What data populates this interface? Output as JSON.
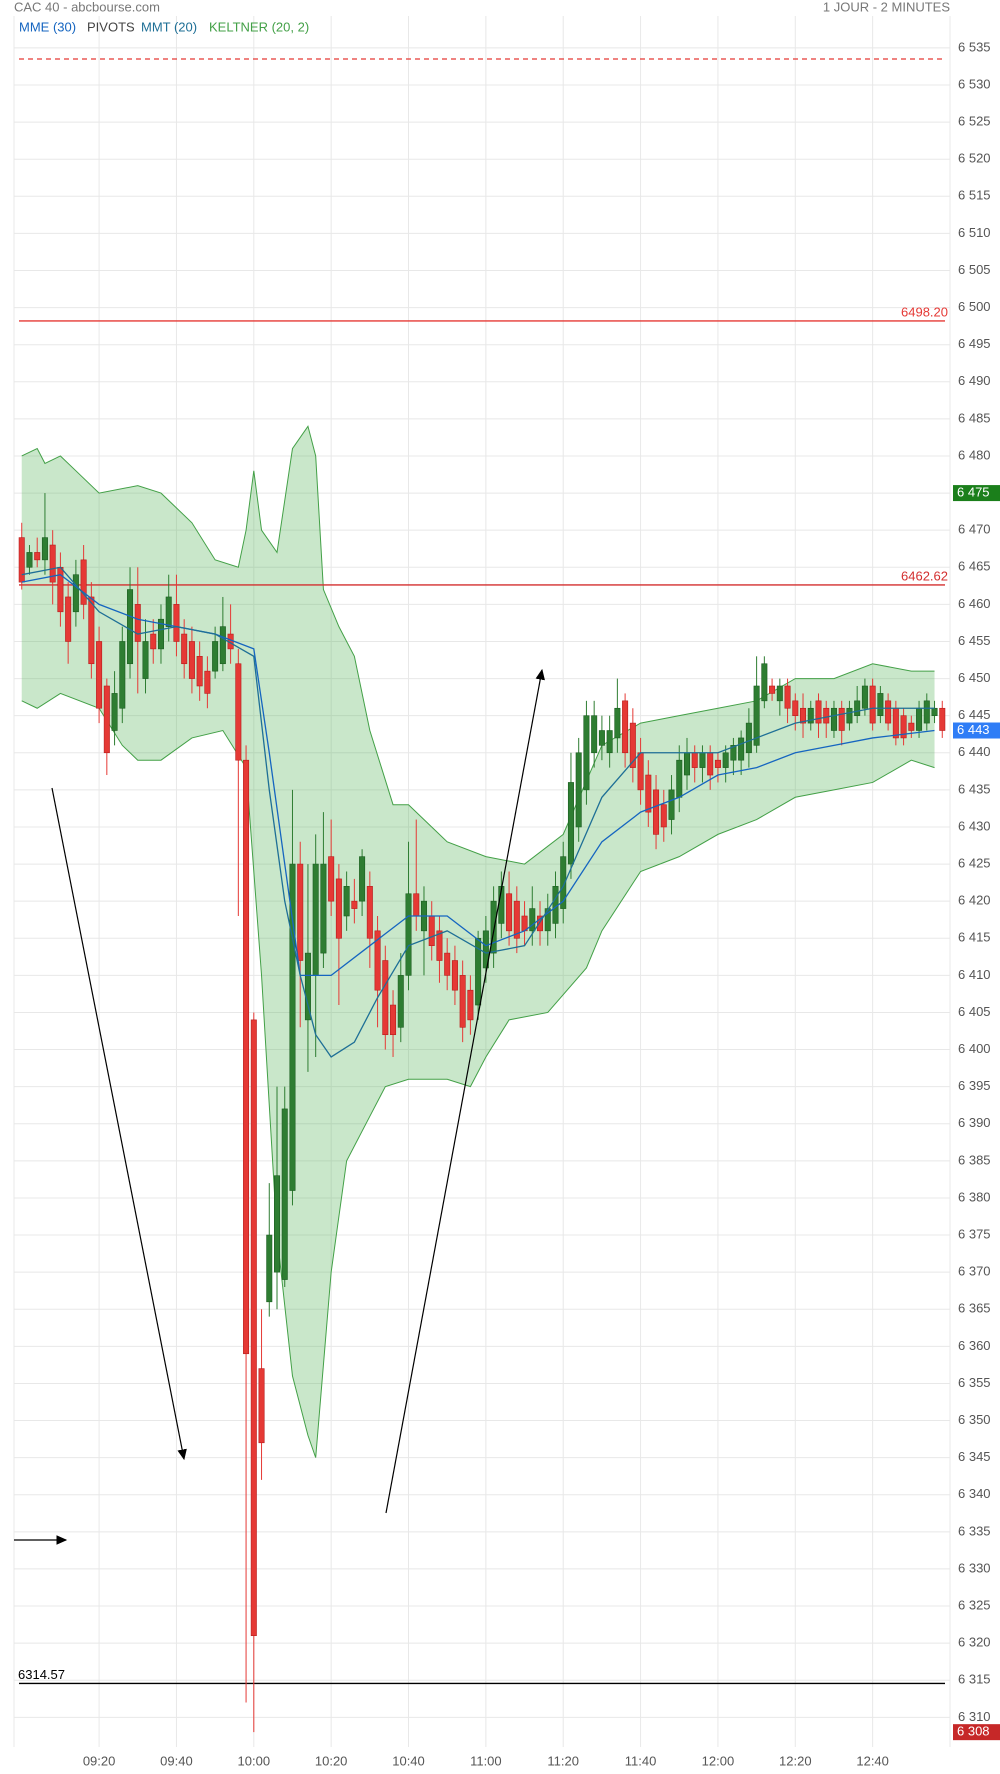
{
  "chart_data": {
    "type": "candlestick",
    "title": "CAC 40 - abcbourse.com",
    "subtitle": "1 JOUR - 2 MINUTES",
    "x": [
      "09:00",
      "09:02",
      "09:04",
      "09:06",
      "09:08",
      "09:10",
      "09:12",
      "09:14",
      "09:16",
      "09:18",
      "09:20",
      "09:22",
      "09:24",
      "09:26",
      "09:28",
      "09:30",
      "09:32",
      "09:34",
      "09:36",
      "09:38",
      "09:40",
      "09:42",
      "09:44",
      "09:46",
      "09:48",
      "09:50",
      "09:52",
      "09:54",
      "09:56",
      "09:58",
      "10:00",
      "10:02",
      "10:04",
      "10:06",
      "10:08",
      "10:10",
      "10:12",
      "10:14",
      "10:16",
      "10:18",
      "10:20",
      "10:22",
      "10:24",
      "10:26",
      "10:28",
      "10:30",
      "10:32",
      "10:34",
      "10:36",
      "10:38",
      "10:40",
      "10:42",
      "10:44",
      "10:46",
      "10:48",
      "10:50",
      "10:52",
      "10:54",
      "10:56",
      "10:58",
      "11:00",
      "11:02",
      "11:04",
      "11:06",
      "11:08",
      "11:10",
      "11:12",
      "11:14",
      "11:16",
      "11:18",
      "11:20",
      "11:22",
      "11:24",
      "11:26",
      "11:28",
      "11:30",
      "11:32",
      "11:34",
      "11:36",
      "11:38",
      "11:40",
      "11:42",
      "11:44",
      "11:46",
      "11:48",
      "11:50",
      "11:52",
      "11:54",
      "11:56",
      "11:58",
      "12:00",
      "12:02",
      "12:04",
      "12:06",
      "12:08",
      "12:10",
      "12:12",
      "12:14",
      "12:16",
      "12:18",
      "12:20",
      "12:22",
      "12:24",
      "12:26",
      "12:28",
      "12:30",
      "12:32",
      "12:34",
      "12:36",
      "12:38",
      "12:40",
      "12:42",
      "12:44",
      "12:46",
      "12:48",
      "12:50",
      "12:52",
      "12:54",
      "12:56",
      "12:58"
    ],
    "open": [
      6469,
      6465,
      6467,
      6466,
      6468,
      6465,
      6461,
      6459,
      6466,
      6461,
      6455,
      6449,
      6443,
      6446,
      6452,
      6460,
      6450,
      6456,
      6454,
      6457,
      6460,
      6456,
      6455,
      6453,
      6451,
      6451,
      6452,
      6456,
      6452,
      6439,
      6404,
      6357,
      6366,
      6370,
      6369,
      6381,
      6425,
      6404,
      6410,
      6413,
      6426,
      6423,
      6418,
      6420,
      6420,
      6422,
      6416,
      6412,
      6406,
      6403,
      6410,
      6421,
      6416,
      6418,
      6416,
      6413,
      6412,
      6410,
      6408,
      6406,
      6411,
      6413,
      6417,
      6421,
      6420,
      6418,
      6416,
      6418,
      6416,
      6417,
      6419,
      6425,
      6430,
      6435,
      6440,
      6441,
      6440,
      6442,
      6447,
      6444,
      6440,
      6437,
      6435,
      6433,
      6431,
      6434,
      6437,
      6440,
      6438,
      6440,
      6439,
      6438,
      6439,
      6439,
      6440,
      6441,
      6447,
      6449,
      6447,
      6449,
      6447,
      6446,
      6444,
      6447,
      6446,
      6443,
      6446,
      6444,
      6445,
      6446,
      6449,
      6445,
      6447,
      6446,
      6445,
      6444,
      6443,
      6444,
      6445,
      6446
    ],
    "high": [
      6471,
      6468,
      6469,
      6475,
      6470,
      6467,
      6463,
      6466,
      6468,
      6463,
      6457,
      6450,
      6451,
      6457,
      6465,
      6465,
      6458,
      6458,
      6460,
      6464,
      6464,
      6458,
      6457,
      6455,
      6453,
      6457,
      6461,
      6460,
      6454,
      6441,
      6405,
      6365,
      6382,
      6395,
      6395,
      6435,
      6428,
      6425,
      6429,
      6432,
      6431,
      6425,
      6424,
      6423,
      6427,
      6424,
      6418,
      6414,
      6408,
      6413,
      6428,
      6431,
      6422,
      6420,
      6418,
      6415,
      6414,
      6412,
      6410,
      6416,
      6418,
      6422,
      6424,
      6424,
      6422,
      6420,
      6422,
      6420,
      6421,
      6424,
      6428,
      6440,
      6442,
      6447,
      6447,
      6445,
      6445,
      6450,
      6448,
      6446,
      6442,
      6439,
      6437,
      6435,
      6437,
      6441,
      6442,
      6441,
      6441,
      6441,
      6440,
      6441,
      6442,
      6443,
      6446,
      6453,
      6453,
      6450,
      6450,
      6450,
      6448,
      6448,
      6447,
      6448,
      6447,
      6447,
      6447,
      6447,
      6449,
      6450,
      6450,
      6449,
      6448,
      6447,
      6446,
      6445,
      6447,
      6448,
      6447,
      6447
    ],
    "low": [
      6462,
      6464,
      6465,
      6464,
      6460,
      6457,
      6452,
      6457,
      6458,
      6450,
      6444,
      6437,
      6441,
      6444,
      6450,
      6448,
      6448,
      6452,
      6452,
      6455,
      6453,
      6450,
      6448,
      6447,
      6446,
      6450,
      6451,
      6452,
      6418,
      6312,
      6308,
      6342,
      6364,
      6365,
      6368,
      6379,
      6403,
      6397,
      6399,
      6411,
      6418,
      6406,
      6416,
      6417,
      6418,
      6411,
      6403,
      6400,
      6399,
      6401,
      6408,
      6416,
      6410,
      6412,
      6409,
      6408,
      6406,
      6401,
      6402,
      6404,
      6409,
      6411,
      6415,
      6414,
      6413,
      6414,
      6414,
      6414,
      6414,
      6415,
      6417,
      6423,
      6428,
      6433,
      6438,
      6439,
      6438,
      6440,
      6438,
      6436,
      6433,
      6430,
      6427,
      6428,
      6429,
      6432,
      6435,
      6436,
      6436,
      6435,
      6436,
      6436,
      6437,
      6437,
      6438,
      6440,
      6446,
      6447,
      6445,
      6444,
      6443,
      6442,
      6443,
      6442,
      6442,
      6442,
      6441,
      6443,
      6444,
      6445,
      6443,
      6444,
      6443,
      6441,
      6441,
      6442,
      6442,
      6443,
      6444,
      6442
    ],
    "close": [
      6463,
      6467,
      6466,
      6469,
      6463,
      6459,
      6455,
      6464,
      6460,
      6452,
      6446,
      6440,
      6448,
      6455,
      6462,
      6455,
      6455,
      6454,
      6458,
      6461,
      6455,
      6452,
      6450,
      6449,
      6448,
      6455,
      6457,
      6454,
      6439,
      6359,
      6321,
      6347,
      6375,
      6383,
      6392,
      6425,
      6412,
      6413,
      6425,
      6425,
      6420,
      6415,
      6422,
      6419,
      6426,
      6415,
      6408,
      6402,
      6402,
      6410,
      6421,
      6418,
      6420,
      6414,
      6412,
      6410,
      6408,
      6403,
      6404,
      6415,
      6416,
      6420,
      6422,
      6416,
      6415,
      6416,
      6419,
      6416,
      6419,
      6422,
      6426,
      6436,
      6440,
      6445,
      6445,
      6443,
      6443,
      6446,
      6440,
      6438,
      6435,
      6432,
      6429,
      6430,
      6435,
      6439,
      6440,
      6438,
      6440,
      6437,
      6438,
      6440,
      6441,
      6442,
      6444,
      6449,
      6452,
      6448,
      6449,
      6446,
      6445,
      6444,
      6446,
      6444,
      6444,
      6446,
      6443,
      6446,
      6447,
      6449,
      6444,
      6448,
      6444,
      6442,
      6442,
      6443,
      6446,
      6447,
      6446,
      6443
    ],
    "up_color": "#2e7d32",
    "down_color": "#e53935",
    "xlim": [
      "08:58",
      "13:00"
    ],
    "xticks": [
      "09:20",
      "09:40",
      "10:00",
      "10:20",
      "10:40",
      "11:00",
      "11:20",
      "11:40",
      "12:00",
      "12:20",
      "12:40"
    ],
    "ylim": [
      6306,
      6539.3
    ],
    "yticks": [
      {
        "value": 6310,
        "label": "6 310"
      },
      {
        "value": 6315,
        "label": "6 315"
      },
      {
        "value": 6320,
        "label": "6 320"
      },
      {
        "value": 6325,
        "label": "6 325"
      },
      {
        "value": 6330,
        "label": "6 330"
      },
      {
        "value": 6335,
        "label": "6 335"
      },
      {
        "value": 6340,
        "label": "6 340"
      },
      {
        "value": 6345,
        "label": "6 345"
      },
      {
        "value": 6350,
        "label": "6 350"
      },
      {
        "value": 6355,
        "label": "6 355"
      },
      {
        "value": 6360,
        "label": "6 360"
      },
      {
        "value": 6365,
        "label": "6 365"
      },
      {
        "value": 6370,
        "label": "6 370"
      },
      {
        "value": 6375,
        "label": "6 375"
      },
      {
        "value": 6380,
        "label": "6 380"
      },
      {
        "value": 6385,
        "label": "6 385"
      },
      {
        "value": 6390,
        "label": "6 390"
      },
      {
        "value": 6395,
        "label": "6 395"
      },
      {
        "value": 6400,
        "label": "6 400"
      },
      {
        "value": 6405,
        "label": "6 405"
      },
      {
        "value": 6410,
        "label": "6 410"
      },
      {
        "value": 6415,
        "label": "6 415"
      },
      {
        "value": 6420,
        "label": "6 420"
      },
      {
        "value": 6425,
        "label": "6 425"
      },
      {
        "value": 6430,
        "label": "6 430"
      },
      {
        "value": 6435,
        "label": "6 435"
      },
      {
        "value": 6440,
        "label": "6 440"
      },
      {
        "value": 6445,
        "label": "6 445"
      },
      {
        "value": 6450,
        "label": "6 450"
      },
      {
        "value": 6455,
        "label": "6 455"
      },
      {
        "value": 6460,
        "label": "6 460"
      },
      {
        "value": 6465,
        "label": "6 465"
      },
      {
        "value": 6470,
        "label": "6 470"
      },
      {
        "value": 6475,
        "label": "6 475"
      },
      {
        "value": 6480,
        "label": "6 480"
      },
      {
        "value": 6485,
        "label": "6 485"
      },
      {
        "value": 6490,
        "label": "6 490"
      },
      {
        "value": 6495,
        "label": "6 495"
      },
      {
        "value": 6500,
        "label": "6 500"
      },
      {
        "value": 6505,
        "label": "6 505"
      },
      {
        "value": 6510,
        "label": "6 510"
      },
      {
        "value": 6515,
        "label": "6 515"
      },
      {
        "value": 6520,
        "label": "6 520"
      },
      {
        "value": 6525,
        "label": "6 525"
      },
      {
        "value": 6530,
        "label": "6 530"
      },
      {
        "value": 6535,
        "label": "6 535"
      }
    ],
    "grid": true,
    "indicators": [
      {
        "name": "MME (30)",
        "color": "#1565c0",
        "x": [
          "09:00",
          "09:10",
          "09:20",
          "09:30",
          "09:40",
          "09:50",
          "10:00",
          "10:04",
          "10:08",
          "10:12",
          "10:20",
          "10:30",
          "10:40",
          "10:50",
          "11:00",
          "11:10",
          "11:20",
          "11:30",
          "11:40",
          "11:50",
          "12:00",
          "12:10",
          "12:20",
          "12:30",
          "12:40",
          "12:56"
        ],
        "values": [
          6463,
          6464,
          6460,
          6458,
          6457,
          6456,
          6454,
          6440,
          6425,
          6410,
          6410,
          6414,
          6418,
          6418,
          6414,
          6416,
          6420,
          6428,
          6432,
          6434,
          6437,
          6438,
          6440,
          6441,
          6442,
          6443
        ]
      },
      {
        "name": "MMT (20)",
        "color": "#1e6f96",
        "x": [
          "09:00",
          "09:10",
          "09:20",
          "09:30",
          "09:40",
          "09:50",
          "10:00",
          "10:04",
          "10:08",
          "10:12",
          "10:16",
          "10:20",
          "10:26",
          "10:32",
          "10:40",
          "10:50",
          "11:00",
          "11:10",
          "11:20",
          "11:30",
          "11:40",
          "11:50",
          "12:00",
          "12:10",
          "12:20",
          "12:30",
          "12:40",
          "12:56"
        ],
        "values": [
          6464,
          6465,
          6459,
          6456,
          6457,
          6456,
          6453,
          6435,
          6420,
          6410,
          6402,
          6399,
          6401,
          6407,
          6414,
          6416,
          6413,
          6414,
          6422,
          6434,
          6440,
          6440,
          6440,
          6442,
          6444,
          6445,
          6446,
          6446
        ]
      }
    ],
    "pivots": {
      "name": "PIVOTS",
      "label_color": "#444444",
      "levels": [
        {
          "value": 6533.5,
          "color": "#e53935",
          "dashed": true
        },
        {
          "value": 6498.2,
          "label": "6498.20",
          "color": "#e53935",
          "label_side": "right"
        },
        {
          "value": 6462.62,
          "color": "#d32f2f",
          "label_side": "right"
        },
        {
          "value": 6314.57,
          "color": "#000000",
          "label_side": "left"
        }
      ]
    },
    "keltner": {
      "name": "KELTNER (20, 2)",
      "color": "#43a047",
      "fill": "rgba(76,175,80,0.3)",
      "upper": {
        "x": [
          "09:00",
          "09:04",
          "09:06",
          "09:10",
          "09:14",
          "09:20",
          "09:30",
          "09:36",
          "09:44",
          "09:50",
          "09:56",
          "09:58",
          "10:00",
          "10:02",
          "10:06",
          "10:10",
          "10:14",
          "10:16",
          "10:18",
          "10:22",
          "10:26",
          "10:30",
          "10:36",
          "10:40",
          "10:46",
          "10:50",
          "11:00",
          "11:10",
          "11:20",
          "11:30",
          "11:40",
          "11:50",
          "12:00",
          "12:10",
          "12:20",
          "12:30",
          "12:40",
          "12:50",
          "12:56"
        ],
        "values": [
          6480,
          6481,
          6479,
          6480,
          6478,
          6475,
          6476,
          6475,
          6471,
          6466,
          6465,
          6470,
          6478,
          6470,
          6467,
          6481,
          6484,
          6480,
          6462,
          6457,
          6453,
          6443,
          6433,
          6433,
          6430,
          6428,
          6426,
          6425,
          6429,
          6441,
          6444,
          6445,
          6446,
          6447,
          6450,
          6450,
          6452,
          6451,
          6451
        ]
      },
      "lower": {
        "x": [
          "09:00",
          "09:04",
          "09:10",
          "09:20",
          "09:26",
          "09:30",
          "09:36",
          "09:44",
          "09:52",
          "09:58",
          "10:02",
          "10:06",
          "10:10",
          "10:14",
          "10:16",
          "10:20",
          "10:24",
          "10:30",
          "10:34",
          "10:40",
          "10:50",
          "10:56",
          "11:00",
          "11:06",
          "11:16",
          "11:26",
          "11:30",
          "11:40",
          "11:50",
          "12:00",
          "12:10",
          "12:20",
          "12:30",
          "12:40",
          "12:50",
          "12:56"
        ],
        "values": [
          6447,
          6446,
          6448,
          6446,
          6441,
          6439,
          6439,
          6442,
          6443,
          6438,
          6410,
          6375,
          6356,
          6348,
          6345,
          6370,
          6385,
          6391,
          6395,
          6396,
          6396,
          6395,
          6399,
          6404,
          6405,
          6411,
          6416,
          6424,
          6426,
          6429,
          6431,
          6434,
          6435,
          6436,
          6439,
          6438
        ]
      }
    },
    "price_tags": [
      {
        "value": 6475,
        "label": "6 475",
        "color": "#1b7f1b"
      },
      {
        "value": 6443,
        "label": "6 443",
        "color": "#2f7df6"
      },
      {
        "value": 6308,
        "label": "6 308",
        "color": "#c62828"
      }
    ]
  }
}
